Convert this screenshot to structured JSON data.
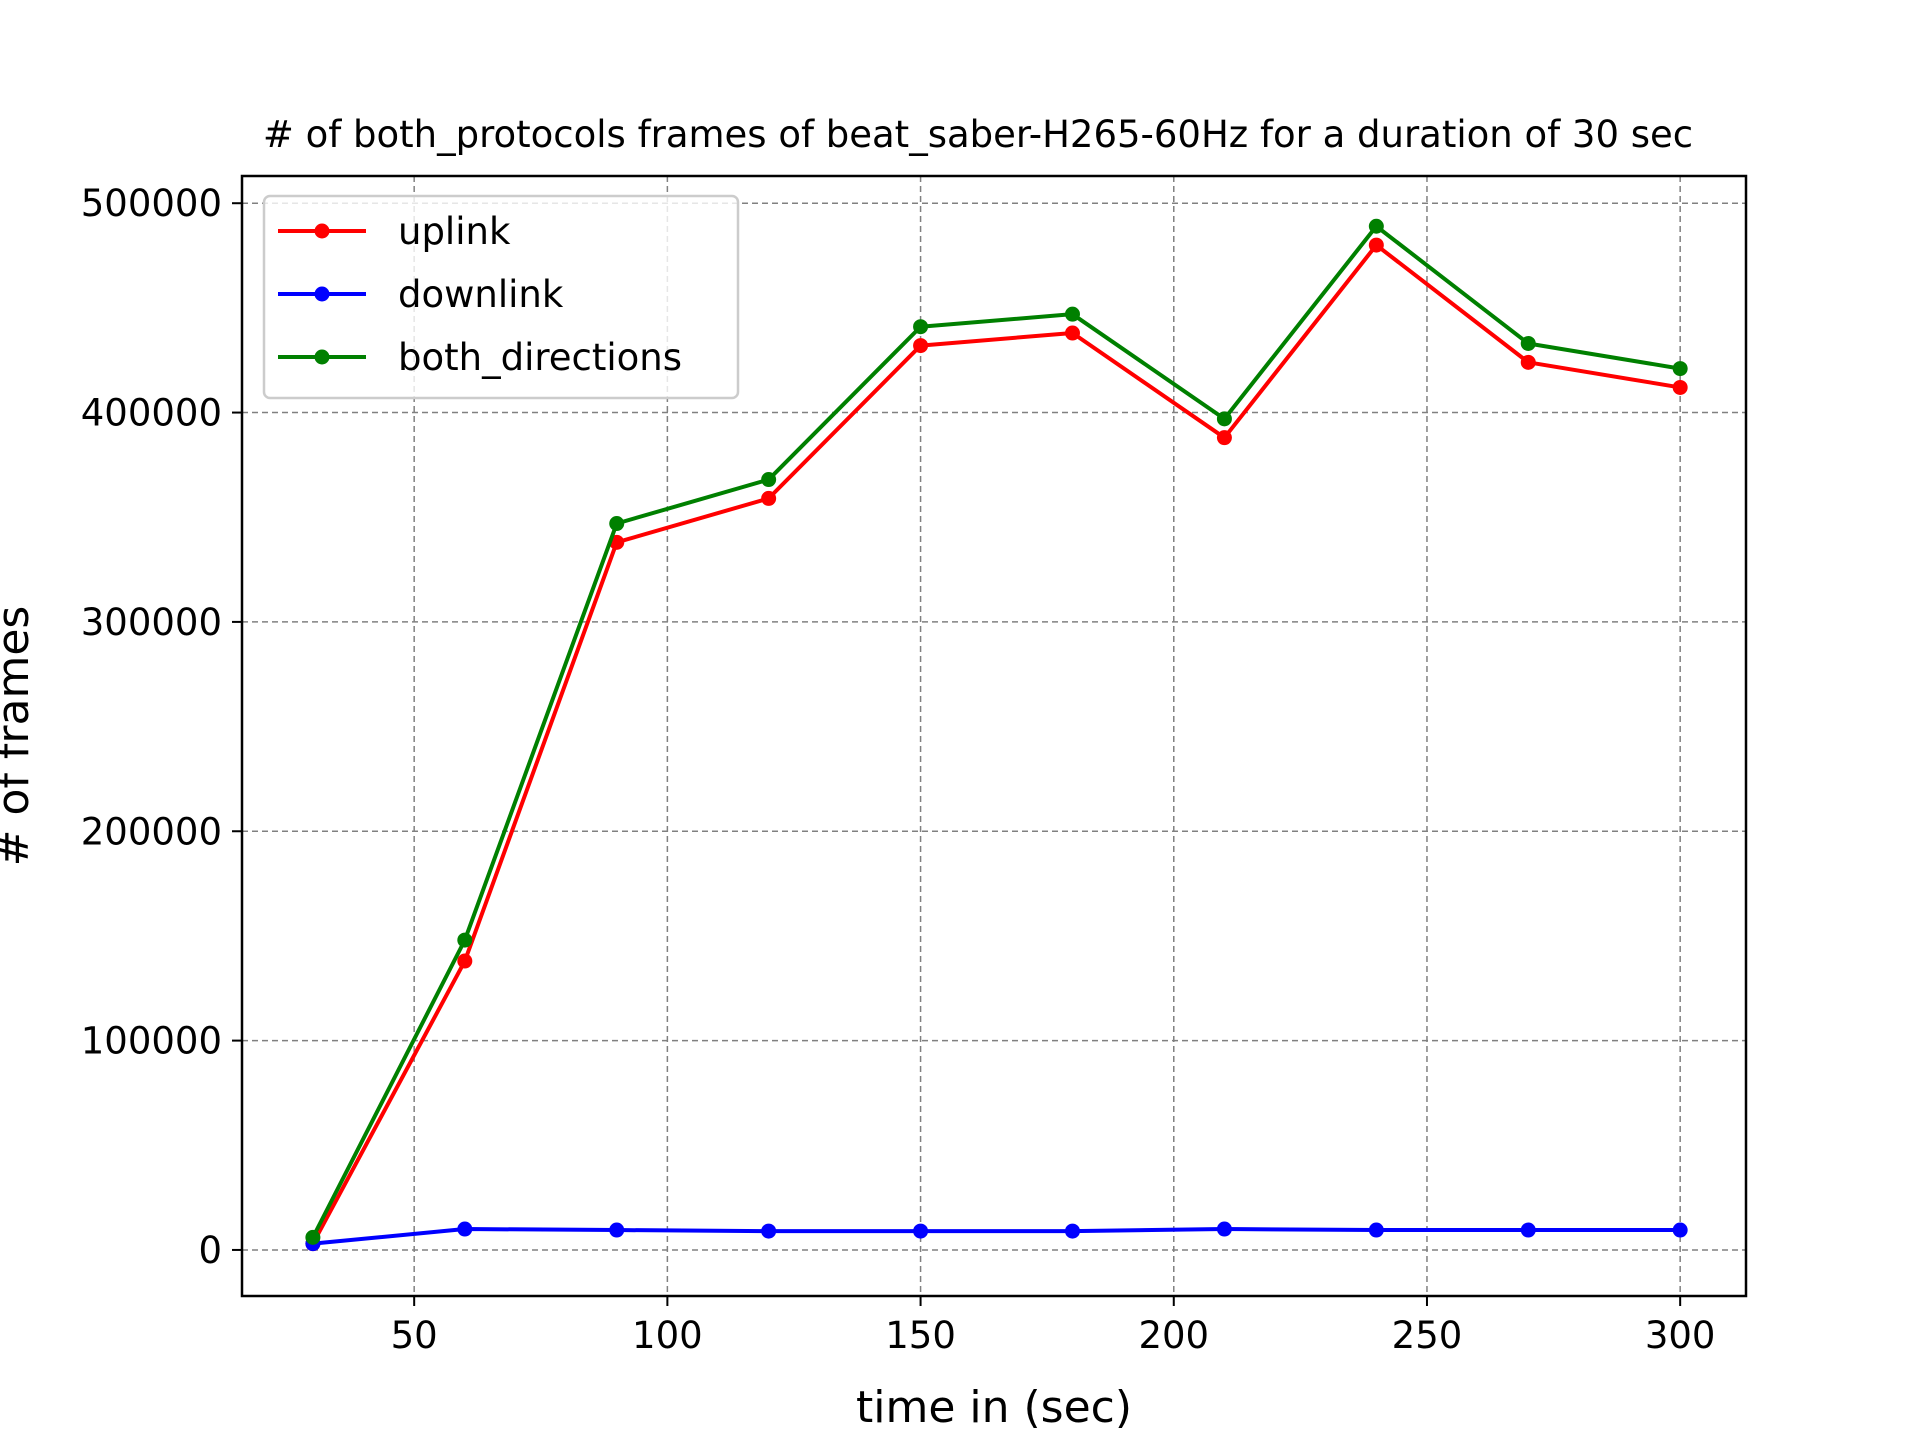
{
  "chart_data": {
    "type": "line",
    "title": "# of both_protocols frames of beat_saber-H265-60Hz for a duration of 30 sec",
    "xlabel": "time in (sec)",
    "ylabel": "# of frames",
    "xlim": [
      16,
      313
    ],
    "ylim": [
      -22000,
      513000
    ],
    "xticks": [
      50,
      100,
      150,
      200,
      250,
      300
    ],
    "yticks": [
      0,
      100000,
      200000,
      300000,
      400000,
      500000
    ],
    "grid": true,
    "legend_position": "top-left",
    "x": [
      30,
      60,
      90,
      120,
      150,
      180,
      210,
      240,
      270,
      300
    ],
    "series": [
      {
        "name": "uplink",
        "color": "#ff0000",
        "values": [
          3000,
          138000,
          338000,
          359000,
          432000,
          438000,
          388000,
          480000,
          424000,
          412000
        ]
      },
      {
        "name": "downlink",
        "color": "#0000ff",
        "values": [
          3000,
          10000,
          9500,
          9000,
          9000,
          9000,
          10000,
          9500,
          9500,
          9500
        ]
      },
      {
        "name": "both_directions",
        "color": "#008000",
        "values": [
          6000,
          148000,
          347000,
          368000,
          441000,
          447000,
          397000,
          489000,
          433000,
          421000
        ]
      }
    ]
  }
}
